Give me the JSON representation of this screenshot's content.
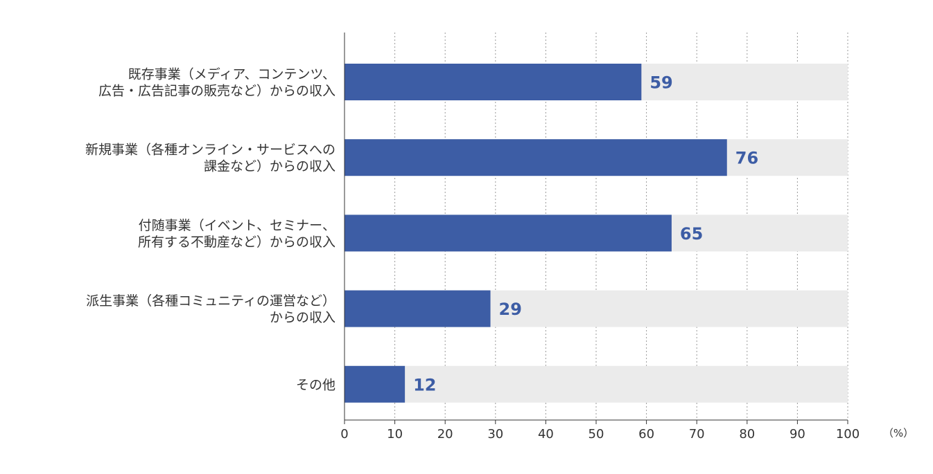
{
  "chart_data": {
    "type": "bar",
    "orientation": "horizontal",
    "categories": [
      [
        "既存事業（メディア、コンテンツ、",
        "広告・広告記事の販売など）からの収入"
      ],
      [
        "新規事業（各種オンライン・サービスへの",
        "課金など）からの収入"
      ],
      [
        "付随事業（イベント、セミナー、",
        "所有する不動産など）からの収入"
      ],
      [
        "派生事業（各種コミュニティの運営など）",
        "からの収入"
      ],
      [
        "その他"
      ]
    ],
    "values": [
      59,
      76,
      65,
      29,
      12
    ],
    "xlim": [
      0,
      100
    ],
    "xticks": [
      "0",
      "10",
      "20",
      "30",
      "40",
      "50",
      "60",
      "70",
      "80",
      "90",
      "100"
    ],
    "unit": "（%）",
    "grid": "vertical-dotted",
    "colors": {
      "bar": "#3d5da5",
      "track": "#ebebeb",
      "value_text": "#3d5da5",
      "axis": "#333333",
      "grid": "#999999"
    }
  }
}
